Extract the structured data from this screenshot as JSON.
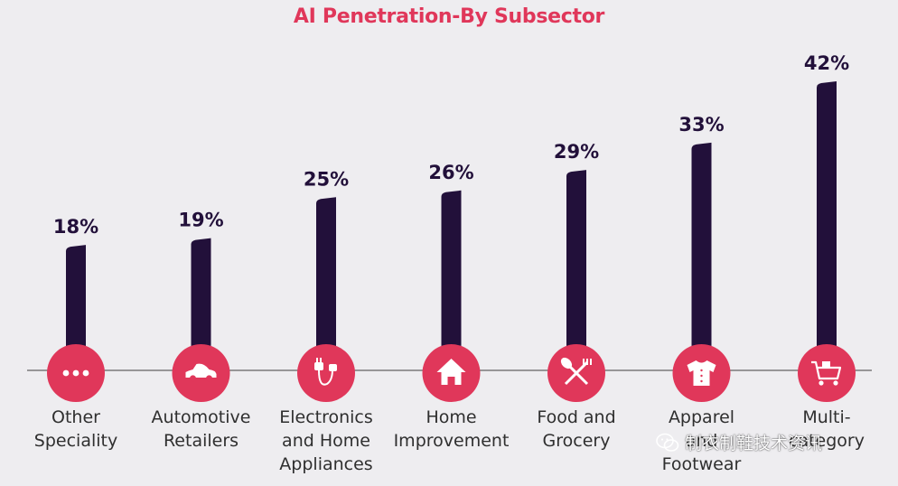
{
  "colors": {
    "background": "#eeedf0",
    "title": "#e0375a",
    "bar": "#22103a",
    "circle": "#e0375a",
    "axis": "#7a7a7a",
    "label": "#2f2f2f",
    "value": "#22103a"
  },
  "chart_data": {
    "type": "bar",
    "title": "AI Penetration-By Subsector",
    "xlabel": "",
    "ylabel": "",
    "ylim": [
      0,
      42
    ],
    "value_suffix": "%",
    "categories": [
      [
        "Other",
        "Speciality"
      ],
      [
        "Automotive",
        "Retailers"
      ],
      [
        "Electronics",
        "and Home",
        "Appliances"
      ],
      [
        "Home",
        "Improvement"
      ],
      [
        "Food and",
        "Grocery"
      ],
      [
        "Apparel",
        "and",
        "Footwear"
      ],
      [
        "Multi-",
        "category"
      ]
    ],
    "values": [
      18,
      19,
      25,
      26,
      29,
      33,
      42
    ],
    "value_labels": [
      "18%",
      "19%",
      "25%",
      "26%",
      "29%",
      "33%",
      "42%"
    ],
    "icons": [
      "dots-icon",
      "car-icon",
      "plug-icon",
      "house-icon",
      "utensils-icon",
      "shirt-icon",
      "cart-icon"
    ]
  },
  "watermark": {
    "text": "制衣制鞋技术资讯",
    "icon": "wechat-icon"
  }
}
